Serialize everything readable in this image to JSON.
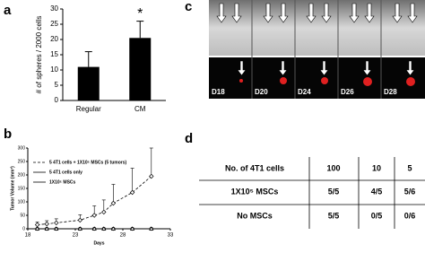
{
  "panel_labels": [
    "a",
    "b",
    "c",
    "d"
  ],
  "chart_data": [
    {
      "type": "bar",
      "ylabel": "# of spheres / 2000 cells",
      "categories": [
        "Regular",
        "CM"
      ],
      "values": [
        11,
        20.5
      ],
      "errors": [
        5,
        5.5
      ],
      "color": "#000000",
      "ylim": [
        0,
        30
      ],
      "yticks": [
        0,
        5,
        10,
        15,
        20,
        25,
        30
      ],
      "annotation": "*"
    },
    {
      "type": "line",
      "ylabel": "Tumor Volume (mm³)",
      "xlabel": "Days",
      "x": [
        19,
        20,
        21,
        23.5,
        25,
        26,
        27,
        29,
        31
      ],
      "series": [
        {
          "name": "5 4T1 cells + 1X10⁵ MSCs (5 tumors)",
          "color": "#000000",
          "marker": "diamond",
          "dashed": true,
          "values": [
            15,
            18,
            22,
            32,
            50,
            62,
            95,
            135,
            195
          ],
          "errors": [
            10,
            12,
            15,
            20,
            35,
            45,
            70,
            90,
            105
          ]
        },
        {
          "name": "5 4T1 cells only",
          "color": "#000000",
          "marker": "circle",
          "dashed": false,
          "values": [
            0,
            0,
            0,
            0,
            0,
            0,
            0,
            0,
            0
          ]
        },
        {
          "name": "1X10⁵ MSCs",
          "color": "#000000",
          "marker": "triangle",
          "dashed": false,
          "values": [
            0,
            0,
            0,
            0,
            0,
            0,
            0,
            0,
            0
          ]
        }
      ],
      "xlim": [
        18,
        33
      ],
      "xticks": [
        18,
        23,
        28,
        33
      ],
      "ylim": [
        0,
        300
      ],
      "yticks": [
        0,
        50,
        100,
        150,
        200,
        250,
        300
      ]
    }
  ],
  "images": {
    "days": [
      "D18",
      "D20",
      "D24",
      "D26",
      "D28"
    ]
  },
  "table": {
    "rows": [
      [
        "No. of 4T1 cells",
        "100",
        "10",
        "5"
      ],
      [
        "1X10⁵ MSCs",
        "5/5",
        "4/5",
        "5/6"
      ],
      [
        "No MSCs",
        "5/5",
        "0/5",
        "0/6"
      ]
    ]
  }
}
